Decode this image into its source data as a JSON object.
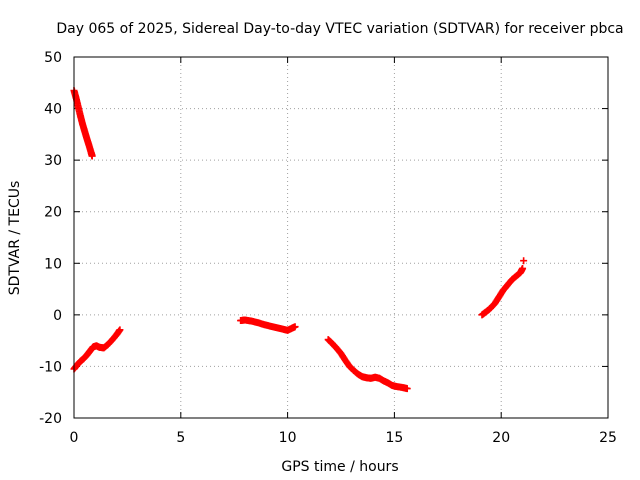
{
  "chart_data": {
    "type": "scatter",
    "title": "Day 065 of 2025, Sidereal Day-to-day VTEC variation (SDTVAR) for receiver pbca",
    "xlabel": "GPS time / hours",
    "ylabel": "SDTVAR / TECUs",
    "xlim": [
      0,
      25
    ],
    "ylim": [
      -20,
      50
    ],
    "xticks": [
      0,
      5,
      10,
      15,
      20,
      25
    ],
    "yticks": [
      -20,
      -10,
      0,
      10,
      20,
      30,
      40,
      50
    ],
    "grid": true,
    "marker": "+",
    "color": "#ff0000",
    "series": [
      {
        "name": "arc-1",
        "x": [
          0.0,
          0.1,
          0.2,
          0.3,
          0.4,
          0.5,
          0.6,
          0.7,
          0.8,
          0.85
        ],
        "y": [
          43.5,
          42.0,
          40.3,
          38.6,
          37.0,
          35.6,
          34.2,
          32.9,
          31.5,
          30.8
        ]
      },
      {
        "name": "arc-2",
        "x": [
          0.0,
          0.15,
          0.3,
          0.45,
          0.6,
          0.75,
          0.9,
          1.05,
          1.2,
          1.4,
          1.6,
          1.8,
          2.0,
          2.15
        ],
        "y": [
          -10.5,
          -9.7,
          -9.0,
          -8.5,
          -7.8,
          -7.0,
          -6.2,
          -6.0,
          -6.3,
          -6.4,
          -5.7,
          -4.8,
          -3.8,
          -2.9
        ]
      },
      {
        "name": "arc-3",
        "x": [
          7.8,
          8.0,
          8.3,
          8.6,
          8.9,
          9.2,
          9.5,
          9.8,
          10.0,
          10.2,
          10.35
        ],
        "y": [
          -1.1,
          -1.0,
          -1.2,
          -1.5,
          -1.9,
          -2.2,
          -2.5,
          -2.8,
          -3.0,
          -2.6,
          -2.3
        ]
      },
      {
        "name": "arc-4",
        "x": [
          11.9,
          12.1,
          12.3,
          12.5,
          12.7,
          12.9,
          13.1,
          13.3,
          13.5,
          13.7,
          13.9,
          14.1,
          14.3,
          14.5,
          14.7,
          14.9,
          15.1,
          15.4,
          15.6
        ],
        "y": [
          -4.8,
          -5.6,
          -6.5,
          -7.5,
          -8.8,
          -10.0,
          -10.8,
          -11.5,
          -12.0,
          -12.2,
          -12.3,
          -12.1,
          -12.3,
          -12.8,
          -13.2,
          -13.7,
          -13.9,
          -14.1,
          -14.3
        ]
      },
      {
        "name": "arc-5",
        "x": [
          19.1,
          19.3,
          19.5,
          19.7,
          19.9,
          20.1,
          20.3,
          20.5,
          20.7,
          20.9,
          21.0
        ],
        "y": [
          0.0,
          0.6,
          1.3,
          2.2,
          3.5,
          4.8,
          5.8,
          6.8,
          7.5,
          8.2,
          9.0
        ]
      },
      {
        "name": "arc-5-tail",
        "x": [
          21.05
        ],
        "y": [
          10.5
        ]
      }
    ]
  }
}
